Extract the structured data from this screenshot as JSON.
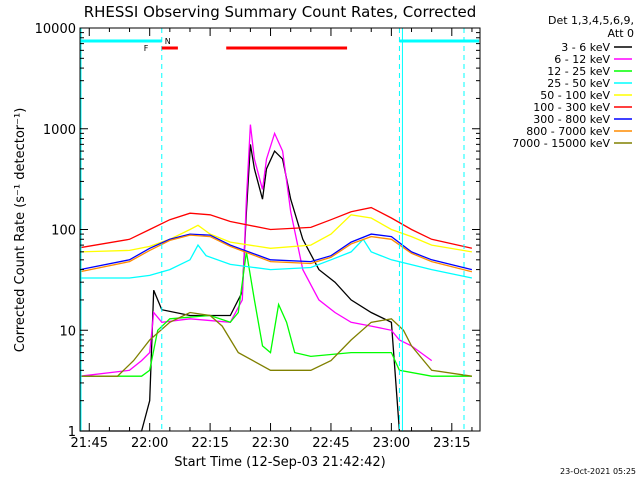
{
  "chart_data": {
    "type": "line",
    "title": "RHESSI Observing Summary Count Rates, Corrected",
    "xlabel": "Start Time (12-Sep-03 21:42:42)",
    "ylabel": "Corrected Count Rate (s⁻¹ detector⁻¹)",
    "y_scale": "log",
    "ylim": [
      1,
      10000
    ],
    "xlim": [
      "21:42:42",
      "23:22:00"
    ],
    "y_ticks": [
      "1",
      "10",
      "100",
      "1000",
      "10000"
    ],
    "x_ticks": [
      "21:45",
      "22:00",
      "22:15",
      "22:30",
      "22:45",
      "23:00",
      "23:15"
    ],
    "legend": {
      "position": "right",
      "header_line1": "Det 1,3,4,5,6,9,",
      "header_line2": "Att 0"
    },
    "footer_date": "23-Oct-2021 05:25",
    "markers": {
      "flare_label": "F",
      "night_label": "N"
    },
    "series": [
      {
        "name": "3 - 6 keV",
        "color": "#000000",
        "x": [
          "21:42",
          "21:55",
          "21:58",
          "22:00",
          "22:01",
          "22:03",
          "22:10",
          "22:20",
          "22:23",
          "22:24",
          "22:25",
          "22:26",
          "22:28",
          "22:29",
          "22:31",
          "22:33",
          "22:35",
          "22:38",
          "22:42",
          "22:46",
          "22:50",
          "22:55",
          "23:00",
          "23:02",
          "23:05",
          "23:15"
        ],
        "y": [
          1,
          1,
          1,
          2,
          25,
          16,
          14,
          14,
          24,
          150,
          700,
          400,
          200,
          400,
          600,
          500,
          200,
          80,
          40,
          30,
          20,
          15,
          12,
          1,
          1,
          1
        ]
      },
      {
        "name": "6 - 12 keV",
        "color": "#ff00ff",
        "x": [
          "21:42",
          "21:55",
          "21:58",
          "22:00",
          "22:01",
          "22:03",
          "22:10",
          "22:20",
          "22:23",
          "22:24",
          "22:25",
          "22:26",
          "22:28",
          "22:29",
          "22:31",
          "22:33",
          "22:35",
          "22:38",
          "22:42",
          "22:46",
          "22:50",
          "22:55",
          "23:00",
          "23:02",
          "23:05",
          "23:10"
        ],
        "y": [
          3.5,
          4,
          5,
          6,
          15,
          12,
          13,
          12,
          20,
          200,
          1100,
          500,
          250,
          500,
          900,
          600,
          150,
          40,
          20,
          15,
          12,
          11,
          10,
          8,
          7,
          5
        ]
      },
      {
        "name": "12 - 25 keV",
        "color": "#00ff00",
        "x": [
          "21:42",
          "21:55",
          "21:58",
          "22:00",
          "22:02",
          "22:05",
          "22:15",
          "22:20",
          "22:22",
          "22:24",
          "22:26",
          "22:28",
          "22:30",
          "22:32",
          "22:34",
          "22:36",
          "22:40",
          "22:50",
          "23:00",
          "23:02",
          "23:10",
          "23:20"
        ],
        "y": [
          3.5,
          3.5,
          3.5,
          4,
          10,
          13,
          14,
          12,
          15,
          60,
          20,
          7,
          6,
          18,
          12,
          6,
          5.5,
          6,
          6,
          4,
          3.5,
          3.5
        ]
      },
      {
        "name": "25 - 50 keV",
        "color": "#00ffff",
        "x": [
          "21:42",
          "21:55",
          "22:00",
          "22:05",
          "22:10",
          "22:12",
          "22:14",
          "22:20",
          "22:30",
          "22:40",
          "22:45",
          "22:50",
          "22:53",
          "22:55",
          "23:00",
          "23:10",
          "23:20"
        ],
        "y": [
          33,
          33,
          35,
          40,
          50,
          70,
          55,
          45,
          40,
          42,
          50,
          60,
          80,
          60,
          50,
          40,
          33
        ]
      },
      {
        "name": "50 - 100 keV",
        "color": "#ffff00",
        "x": [
          "21:42",
          "21:55",
          "22:00",
          "22:05",
          "22:10",
          "22:12",
          "22:15",
          "22:20",
          "22:30",
          "22:40",
          "22:45",
          "22:50",
          "22:55",
          "23:00",
          "23:05",
          "23:10",
          "23:20"
        ],
        "y": [
          60,
          62,
          68,
          80,
          100,
          110,
          90,
          75,
          65,
          70,
          90,
          140,
          130,
          100,
          85,
          70,
          60
        ]
      },
      {
        "name": "100 - 300 keV",
        "color": "#ff0000",
        "x": [
          "21:42",
          "21:55",
          "22:00",
          "22:05",
          "22:10",
          "22:15",
          "22:20",
          "22:30",
          "22:40",
          "22:45",
          "22:50",
          "22:55",
          "23:00",
          "23:05",
          "23:10",
          "23:20"
        ],
        "y": [
          66,
          80,
          100,
          125,
          145,
          140,
          120,
          100,
          105,
          125,
          150,
          165,
          130,
          100,
          80,
          65
        ]
      },
      {
        "name": "300 - 800 keV",
        "color": "#0000ff",
        "x": [
          "21:42",
          "21:55",
          "22:00",
          "22:05",
          "22:10",
          "22:15",
          "22:20",
          "22:30",
          "22:40",
          "22:45",
          "22:50",
          "22:55",
          "23:00",
          "23:05",
          "23:10",
          "23:20"
        ],
        "y": [
          40,
          50,
          65,
          80,
          90,
          88,
          70,
          50,
          48,
          55,
          75,
          90,
          85,
          60,
          50,
          40
        ]
      },
      {
        "name": "800 - 7000 keV",
        "color": "#ff8c00",
        "x": [
          "21:42",
          "21:55",
          "22:00",
          "22:05",
          "22:10",
          "22:15",
          "22:20",
          "22:30",
          "22:40",
          "22:45",
          "22:50",
          "22:55",
          "23:00",
          "23:05",
          "23:10",
          "23:20"
        ],
        "y": [
          38,
          48,
          62,
          78,
          88,
          85,
          68,
          48,
          46,
          53,
          72,
          85,
          80,
          58,
          48,
          38
        ]
      },
      {
        "name": "7000 - 15000 keV",
        "color": "#808000",
        "x": [
          "21:42",
          "21:52",
          "21:56",
          "22:00",
          "22:05",
          "22:10",
          "22:15",
          "22:18",
          "22:22",
          "22:30",
          "22:40",
          "22:45",
          "22:50",
          "22:55",
          "23:00",
          "23:03",
          "23:05",
          "23:10",
          "23:20"
        ],
        "y": [
          3.5,
          3.5,
          5,
          8,
          12,
          15,
          14,
          11,
          6,
          4,
          4,
          5,
          8,
          12,
          13,
          10,
          7,
          4,
          3.5
        ]
      }
    ]
  }
}
